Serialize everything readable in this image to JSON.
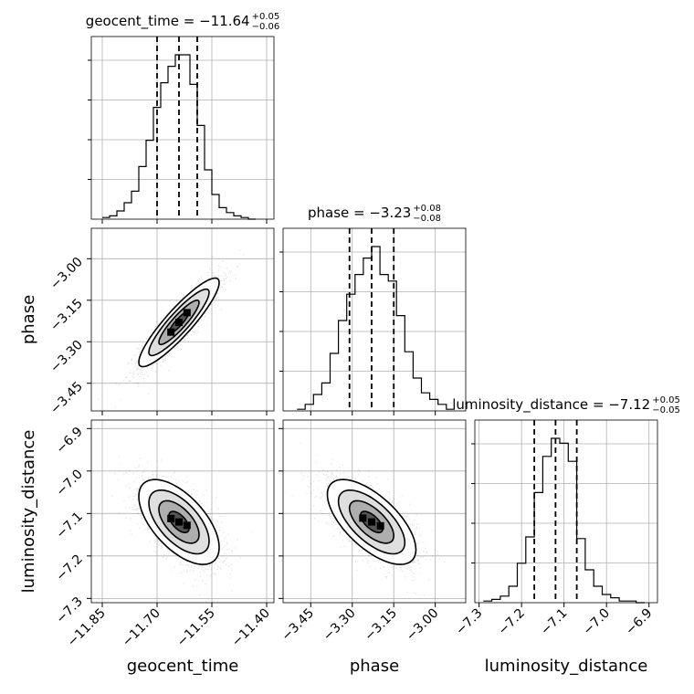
{
  "chart_data": {
    "type": "corner",
    "parameters": [
      {
        "key": "geocent_time",
        "label": "geocent_time",
        "range": [
          -11.88,
          -11.38
        ],
        "ticks": [
          -11.85,
          -11.7,
          -11.55,
          -11.4
        ],
        "tick_labels": [
          "−11.85",
          "−11.70",
          "−11.55",
          "−11.40"
        ]
      },
      {
        "key": "phase",
        "label": "phase",
        "range": [
          -3.55,
          -2.89
        ],
        "ticks": [
          -3.45,
          -3.3,
          -3.15,
          -3.0
        ],
        "tick_labels": [
          "−3.45",
          "−3.30",
          "−3.15",
          "−3.00"
        ]
      },
      {
        "key": "luminosity_distance",
        "label": "luminosity_distance",
        "range": [
          -7.31,
          -6.88
        ],
        "ticks": [
          -7.3,
          -7.2,
          -7.1,
          -7.0,
          -6.9
        ],
        "tick_labels": [
          "−7.3",
          "−7.2",
          "−7.1",
          "−7.0",
          "−6.9"
        ]
      }
    ],
    "titles": [
      {
        "main": "geocent_time = −11.64",
        "sup": "+0.05",
        "sub": "−0.06"
      },
      {
        "main": "phase = −3.23",
        "sup": "+0.08",
        "sub": "−0.08"
      },
      {
        "main": "luminosity_distance = −7.12",
        "sup": "+0.05",
        "sub": "−0.05"
      }
    ],
    "quantiles": [
      [
        -11.7,
        -11.64,
        -11.59
      ],
      [
        -3.31,
        -3.23,
        -3.15
      ],
      [
        -7.17,
        -7.12,
        -7.07
      ]
    ],
    "histograms": [
      {
        "edges": [
          -11.85,
          -11.83,
          -11.81,
          -11.79,
          -11.77,
          -11.75,
          -11.73,
          -11.71,
          -11.69,
          -11.67,
          -11.65,
          -11.63,
          -11.61,
          -11.59,
          -11.57,
          -11.55,
          -11.53,
          -11.51,
          -11.49,
          -11.47,
          -11.45,
          -11.43
        ],
        "counts": [
          1,
          2,
          5,
          10,
          17,
          32,
          48,
          68,
          83,
          93,
          100,
          100,
          82,
          57,
          30,
          15,
          7,
          4,
          2,
          1,
          0
        ]
      },
      {
        "edges": [
          -3.5,
          -3.47,
          -3.44,
          -3.41,
          -3.38,
          -3.35,
          -3.32,
          -3.29,
          -3.26,
          -3.23,
          -3.2,
          -3.17,
          -3.14,
          -3.11,
          -3.08,
          -3.05,
          -3.02,
          -2.99,
          -2.96,
          -2.93
        ],
        "counts": [
          1,
          4,
          10,
          17,
          35,
          55,
          71,
          83,
          93,
          100,
          83,
          79,
          58,
          36,
          20,
          11,
          7,
          4,
          1
        ]
      },
      {
        "edges": [
          -7.29,
          -7.27,
          -7.25,
          -7.23,
          -7.21,
          -7.19,
          -7.17,
          -7.15,
          -7.13,
          -7.11,
          -7.09,
          -7.07,
          -7.05,
          -7.03,
          -7.01,
          -6.99,
          -6.97,
          -6.95,
          -6.93,
          -6.91
        ],
        "counts": [
          1,
          2,
          4,
          10,
          24,
          40,
          67,
          89,
          100,
          97,
          86,
          39,
          20,
          10,
          5,
          3,
          1,
          1,
          0
        ]
      }
    ],
    "pairs": [
      {
        "x": 0,
        "y": 1,
        "mean": [
          -11.64,
          -3.23
        ],
        "sd": [
          0.055,
          0.08
        ],
        "rho": 0.9
      },
      {
        "x": 0,
        "y": 2,
        "mean": [
          -11.64,
          -7.12
        ],
        "sd": [
          0.055,
          0.05
        ],
        "rho": -0.6
      },
      {
        "x": 1,
        "y": 2,
        "mean": [
          -3.23,
          -7.12
        ],
        "sd": [
          0.08,
          0.05
        ],
        "rho": -0.65
      }
    ],
    "grid": true
  }
}
